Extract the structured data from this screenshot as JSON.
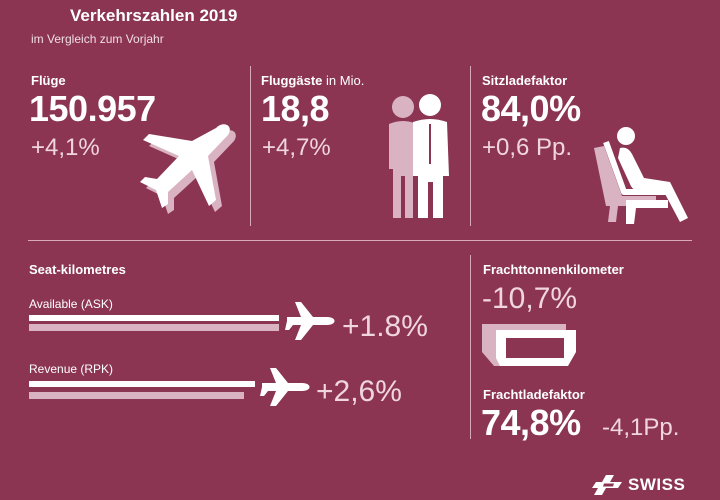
{
  "header": {
    "title": "Verkehrszahlen 2019",
    "subtitle": "im Vergleich zum Vorjahr"
  },
  "kpis": {
    "flights": {
      "label": "Flüge",
      "value": "150.957",
      "change": "+4,1%"
    },
    "passengers": {
      "label_bold": "Fluggäste",
      "label_thin": " in Mio.",
      "value": "18,8",
      "change": "+4,7%"
    },
    "load_factor": {
      "label": "Sitzladefaktor",
      "value": "84,0%",
      "change": "+0,6 Pp."
    }
  },
  "seat_km": {
    "label": "Seat-kilometres",
    "available": {
      "label": "Available (ASK)",
      "change": "+1.8%"
    },
    "revenue": {
      "label": "Revenue (RPK)",
      "change": "+2,6%"
    }
  },
  "cargo": {
    "tonne_km": {
      "label": "Frachttonnenkilometer",
      "change": "-10,7%"
    },
    "load_factor": {
      "label": "Frachtladefaktor",
      "value": "74,8%",
      "change": "-4,1Pp."
    }
  },
  "brand": {
    "name": "SWISS"
  },
  "colors": {
    "background": "#8b3553",
    "foreground": "#ffffff",
    "shadow": "#d9b3c2"
  },
  "icons": [
    "airplane-icon",
    "people-icon",
    "seat-icon",
    "cargo-container-icon",
    "swiss-logo-icon"
  ]
}
